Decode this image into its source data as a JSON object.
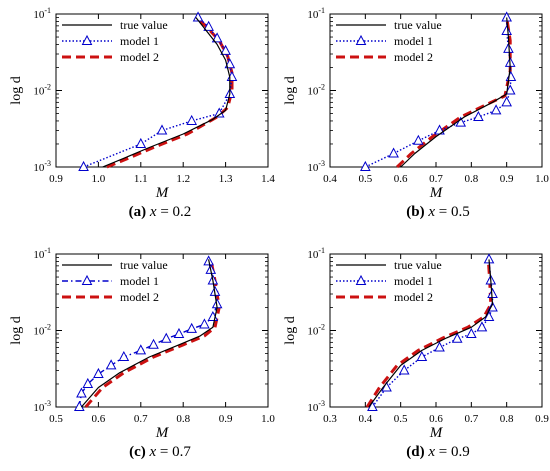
{
  "legend_labels": [
    "true value",
    "model 1",
    "model 2"
  ],
  "y_label": "log d",
  "x_label": "M",
  "y_tick_labels": [
    "10^-3",
    "10^-2",
    "10^-1"
  ],
  "chart_data": [
    {
      "type": "line",
      "caption_tag": "(a)",
      "caption_eq": "x = 0.2",
      "xlabel": "M",
      "ylabel": "log d",
      "xlim": [
        0.9,
        1.4
      ],
      "xticks": [
        "0.9",
        "1.0",
        "1.1",
        "1.2",
        "1.3",
        "1.4"
      ],
      "ylim": [
        0.001,
        0.1
      ],
      "yscale": "log",
      "legend": "top-left",
      "series": [
        {
          "name": "true value",
          "style": "solid",
          "color": "#000000",
          "x": [
            1.01,
            1.06,
            1.12,
            1.2,
            1.27,
            1.3,
            1.31,
            1.31,
            1.3,
            1.28,
            1.25,
            1.23
          ],
          "y": [
            0.001,
            0.0013,
            0.0018,
            0.0027,
            0.0042,
            0.0055,
            0.009,
            0.015,
            0.025,
            0.04,
            0.065,
            0.09
          ]
        },
        {
          "name": "model 1",
          "style": "dotted-triangle",
          "color": "#0000cc",
          "x": [
            0.965,
            1.1,
            1.15,
            1.22,
            1.285,
            1.31,
            1.315,
            1.31,
            1.3,
            1.28,
            1.26,
            1.235
          ],
          "y": [
            0.001,
            0.002,
            0.003,
            0.004,
            0.005,
            0.009,
            0.015,
            0.022,
            0.033,
            0.048,
            0.068,
            0.09
          ]
        },
        {
          "name": "model 2",
          "style": "dashed",
          "color": "#cc1111",
          "x": [
            1.02,
            1.07,
            1.13,
            1.21,
            1.28,
            1.305,
            1.315,
            1.315,
            1.305,
            1.285,
            1.255,
            1.23
          ],
          "y": [
            0.001,
            0.0013,
            0.0018,
            0.0027,
            0.0045,
            0.006,
            0.01,
            0.017,
            0.028,
            0.045,
            0.068,
            0.092
          ]
        }
      ]
    },
    {
      "type": "line",
      "caption_tag": "(b)",
      "caption_eq": "x = 0.5",
      "xlabel": "M",
      "ylabel": "log d",
      "xlim": [
        0.4,
        1.0
      ],
      "xticks": [
        "0.4",
        "0.5",
        "0.6",
        "0.7",
        "0.8",
        "0.9",
        "1.0"
      ],
      "ylim": [
        0.001,
        0.1
      ],
      "yscale": "log",
      "legend": "top-left",
      "series": [
        {
          "name": "true value",
          "style": "solid",
          "color": "#000000",
          "x": [
            0.6,
            0.64,
            0.7,
            0.78,
            0.86,
            0.9,
            0.91,
            0.905,
            0.9
          ],
          "y": [
            0.001,
            0.0015,
            0.0025,
            0.0045,
            0.007,
            0.009,
            0.02,
            0.05,
            0.09
          ]
        },
        {
          "name": "model 1",
          "style": "dotted-triangle",
          "color": "#0000cc",
          "x": [
            0.5,
            0.58,
            0.65,
            0.71,
            0.77,
            0.82,
            0.87,
            0.9,
            0.91,
            0.912,
            0.91,
            0.905,
            0.9,
            0.9
          ],
          "y": [
            0.001,
            0.0015,
            0.0022,
            0.003,
            0.0038,
            0.0045,
            0.0055,
            0.007,
            0.01,
            0.015,
            0.023,
            0.035,
            0.06,
            0.09
          ]
        },
        {
          "name": "model 2",
          "style": "dashed",
          "color": "#cc1111",
          "x": [
            0.59,
            0.63,
            0.69,
            0.77,
            0.85,
            0.895,
            0.91,
            0.91,
            0.9
          ],
          "y": [
            0.001,
            0.0015,
            0.0025,
            0.0045,
            0.0068,
            0.0085,
            0.018,
            0.045,
            0.09
          ]
        }
      ]
    },
    {
      "type": "line",
      "caption_tag": "(c)",
      "caption_eq": "x = 0.7",
      "xlabel": "M",
      "ylabel": "log d",
      "xlim": [
        0.5,
        1.0
      ],
      "xticks": [
        "0.5",
        "0.6",
        "0.7",
        "0.8",
        "0.9",
        "1.0"
      ],
      "ylim": [
        0.001,
        0.1
      ],
      "yscale": "log",
      "legend": "top-left",
      "series": [
        {
          "name": "true value",
          "style": "solid",
          "color": "#000000",
          "x": [
            0.56,
            0.6,
            0.65,
            0.72,
            0.79,
            0.84,
            0.87,
            0.88,
            0.87,
            0.86
          ],
          "y": [
            0.001,
            0.0018,
            0.0028,
            0.0045,
            0.0065,
            0.0085,
            0.011,
            0.02,
            0.045,
            0.085
          ]
        },
        {
          "name": "model 1",
          "style": "dashdot-triangle",
          "color": "#0000cc",
          "x": [
            0.555,
            0.56,
            0.575,
            0.6,
            0.63,
            0.66,
            0.7,
            0.73,
            0.76,
            0.79,
            0.82,
            0.85,
            0.87,
            0.88,
            0.875,
            0.87,
            0.865,
            0.86
          ],
          "y": [
            0.001,
            0.0015,
            0.002,
            0.0027,
            0.0035,
            0.0045,
            0.0055,
            0.0065,
            0.0078,
            0.009,
            0.0105,
            0.012,
            0.015,
            0.022,
            0.032,
            0.045,
            0.062,
            0.08
          ]
        },
        {
          "name": "model 2",
          "style": "dashed",
          "color": "#cc1111",
          "x": [
            0.57,
            0.61,
            0.66,
            0.73,
            0.8,
            0.85,
            0.875,
            0.885,
            0.875,
            0.865
          ],
          "y": [
            0.001,
            0.0018,
            0.0028,
            0.0045,
            0.0065,
            0.0085,
            0.011,
            0.02,
            0.045,
            0.085
          ]
        }
      ]
    },
    {
      "type": "line",
      "caption_tag": "(d)",
      "caption_eq": "x = 0.9",
      "xlabel": "M",
      "ylabel": "log d",
      "xlim": [
        0.3,
        0.9
      ],
      "xticks": [
        "0.3",
        "0.4",
        "0.5",
        "0.6",
        "0.7",
        "0.8",
        "0.9"
      ],
      "ylim": [
        0.001,
        0.1
      ],
      "yscale": "log",
      "legend": "top-left",
      "series": [
        {
          "name": "true value",
          "style": "solid",
          "color": "#000000",
          "x": [
            0.41,
            0.45,
            0.5,
            0.56,
            0.63,
            0.7,
            0.74,
            0.76,
            0.755,
            0.75
          ],
          "y": [
            0.001,
            0.0018,
            0.0035,
            0.0055,
            0.008,
            0.011,
            0.015,
            0.022,
            0.045,
            0.085
          ]
        },
        {
          "name": "model 1",
          "style": "dotted-triangle",
          "color": "#0000cc",
          "x": [
            0.42,
            0.46,
            0.51,
            0.56,
            0.61,
            0.66,
            0.7,
            0.73,
            0.75,
            0.76,
            0.76,
            0.755,
            0.75
          ],
          "y": [
            0.001,
            0.0018,
            0.003,
            0.0045,
            0.006,
            0.0078,
            0.009,
            0.011,
            0.015,
            0.02,
            0.03,
            0.045,
            0.085
          ]
        },
        {
          "name": "model 2",
          "style": "dashed",
          "color": "#cc1111",
          "x": [
            0.405,
            0.44,
            0.49,
            0.55,
            0.62,
            0.69,
            0.735,
            0.755,
            0.752,
            0.748
          ],
          "y": [
            0.001,
            0.0018,
            0.0035,
            0.0055,
            0.008,
            0.011,
            0.015,
            0.022,
            0.045,
            0.085
          ]
        }
      ]
    }
  ]
}
